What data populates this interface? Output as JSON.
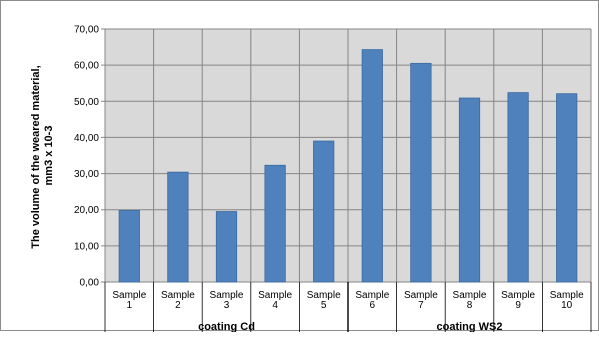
{
  "chart_data": {
    "type": "bar",
    "ylabel_lines": [
      "The volume of the weared material,",
      "mm3 x 10-3"
    ],
    "ylim": [
      0,
      70
    ],
    "y_ticks": [
      "0,00",
      "10,00",
      "20,00",
      "30,00",
      "40,00",
      "50,00",
      "60,00",
      "70,00"
    ],
    "grid": true,
    "categories": [
      [
        "Sample",
        "1"
      ],
      [
        "Sample",
        "2"
      ],
      [
        "Sample",
        "3"
      ],
      [
        "Sample",
        "4"
      ],
      [
        "Sample",
        "5"
      ],
      [
        "Sample",
        "6"
      ],
      [
        "Sample",
        "7"
      ],
      [
        "Sample",
        "8"
      ],
      [
        "Sample",
        "9"
      ],
      [
        "Sample",
        "10"
      ]
    ],
    "groups": [
      {
        "label": "coating  Cd",
        "count": 5
      },
      {
        "label": "coating  WS2",
        "count": 5
      }
    ],
    "values": [
      19.8,
      30.4,
      19.5,
      32.3,
      39.0,
      64.3,
      60.5,
      50.9,
      52.4,
      52.1
    ],
    "colors": {
      "bar": "#4f81bd",
      "bar_edge": "#3a6aa0",
      "plot_bg": "#d9d9d9",
      "grid": "#868686"
    }
  }
}
